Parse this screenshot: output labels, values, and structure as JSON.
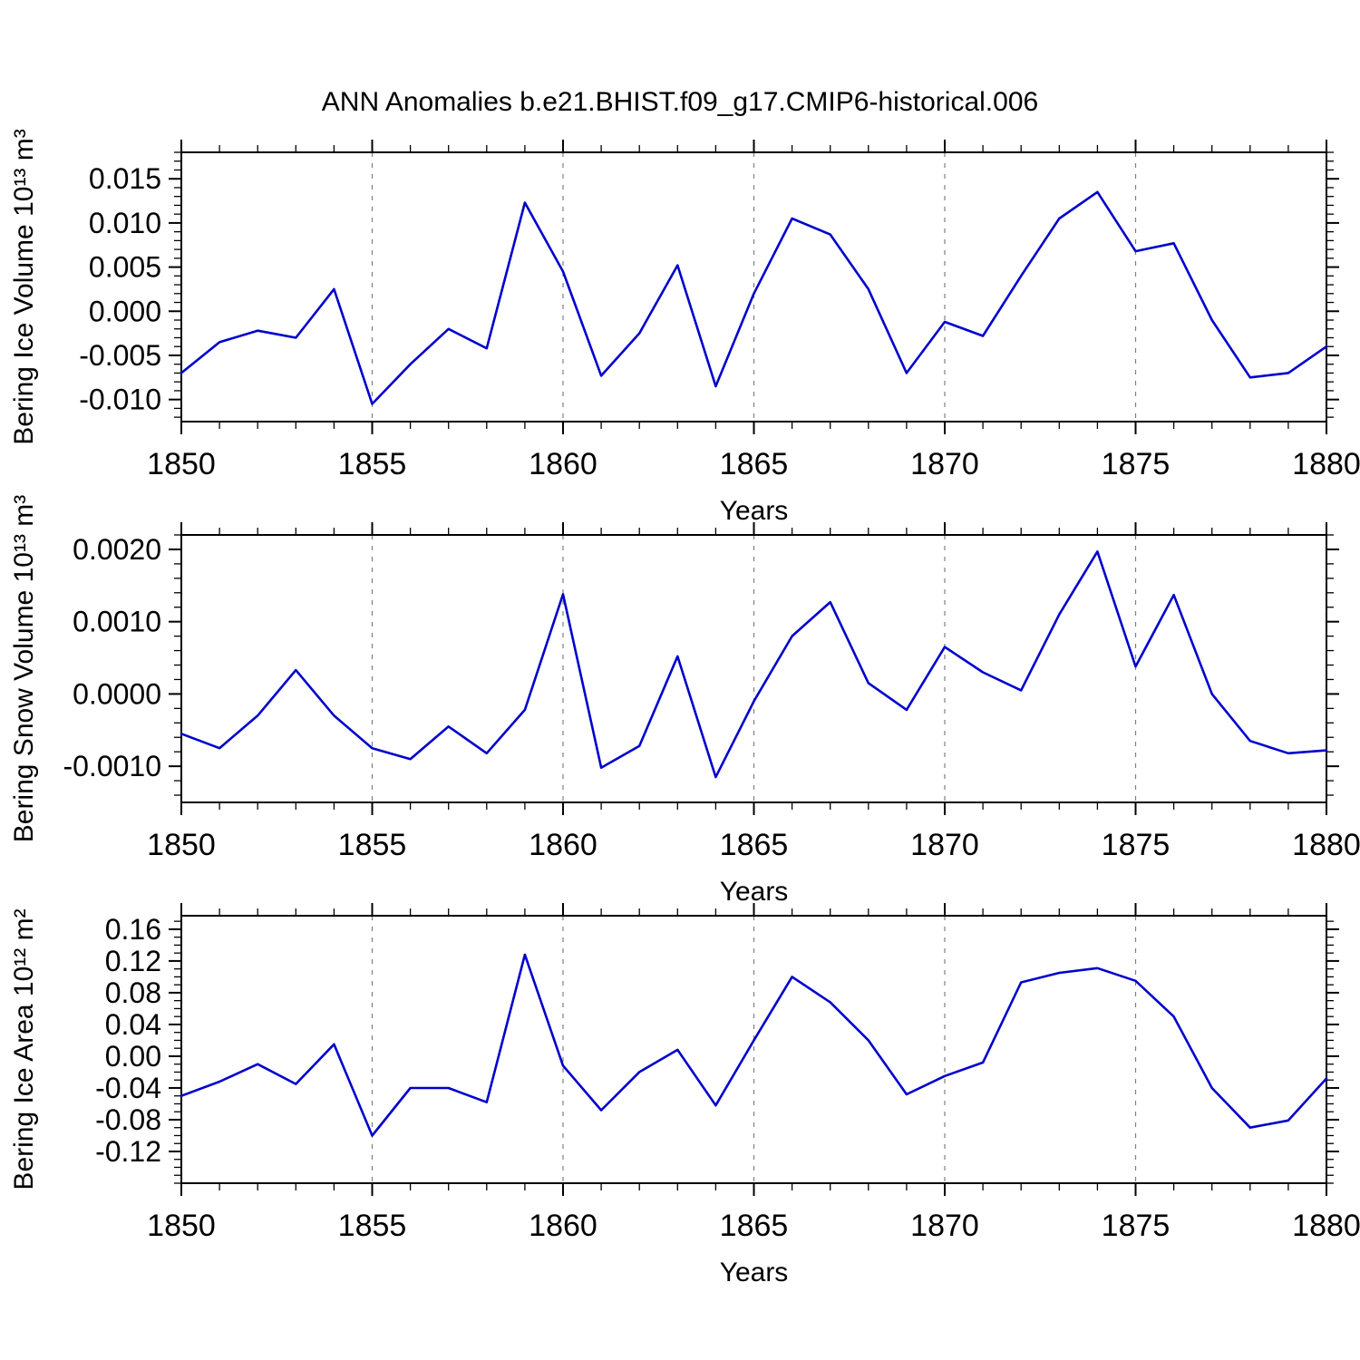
{
  "title": "ANN Anomalies b.e21.BHIST.f09_g17.CMIP6-historical.006",
  "accent_color": "#0000cd",
  "chart_data": [
    {
      "type": "line",
      "name": "ice-volume",
      "ylabel": "Bering Ice Volume 10¹³ m³",
      "xlabel": "Years",
      "x": [
        1850,
        1851,
        1852,
        1853,
        1854,
        1855,
        1856,
        1857,
        1858,
        1859,
        1860,
        1861,
        1862,
        1863,
        1864,
        1865,
        1866,
        1867,
        1868,
        1869,
        1870,
        1871,
        1872,
        1873,
        1874,
        1875,
        1876,
        1877,
        1878,
        1879,
        1880
      ],
      "values": [
        -0.007,
        -0.0035,
        -0.0022,
        -0.003,
        0.0025,
        -0.0105,
        -0.006,
        -0.002,
        -0.0042,
        0.0123,
        0.0045,
        -0.0073,
        -0.0025,
        0.0052,
        -0.0085,
        0.002,
        0.0105,
        0.0087,
        0.0025,
        -0.007,
        -0.0012,
        -0.0028,
        0.004,
        0.0105,
        0.0135,
        0.0068,
        0.0077,
        -0.001,
        -0.0075,
        -0.007,
        -0.004
      ],
      "xlim": [
        1850,
        1880
      ],
      "ylim": [
        -0.0125,
        0.018
      ],
      "xticks": [
        1850,
        1855,
        1860,
        1865,
        1870,
        1875,
        1880
      ],
      "xtick_labels": [
        "1850",
        "1855",
        "1860",
        "1865",
        "1870",
        "1875",
        "1880"
      ],
      "ytick_values": [
        -0.01,
        -0.005,
        0.0,
        0.005,
        0.01,
        0.015
      ],
      "ytick_labels": [
        "-0.010",
        "-0.005",
        "0.000",
        "0.005",
        "0.010",
        "0.015"
      ],
      "grid_x": [
        1855,
        1860,
        1865,
        1870,
        1875
      ],
      "line_color": "#0000cd",
      "grid": "dashed-vertical",
      "legend": "none"
    },
    {
      "type": "line",
      "name": "snow-volume",
      "ylabel": "Bering Snow Volume 10¹³ m³",
      "xlabel": "Years",
      "x": [
        1850,
        1851,
        1852,
        1853,
        1854,
        1855,
        1856,
        1857,
        1858,
        1859,
        1860,
        1861,
        1862,
        1863,
        1864,
        1865,
        1866,
        1867,
        1868,
        1869,
        1870,
        1871,
        1872,
        1873,
        1874,
        1875,
        1876,
        1877,
        1878,
        1879,
        1880
      ],
      "values": [
        -0.00055,
        -0.00075,
        -0.0003,
        0.00033,
        -0.0003,
        -0.00075,
        -0.0009,
        -0.00045,
        -0.00082,
        -0.00022,
        0.00138,
        -0.00102,
        -0.00072,
        0.00052,
        -0.00115,
        -0.0001,
        0.0008,
        0.00127,
        0.00015,
        -0.00022,
        0.00065,
        0.0003,
        5e-05,
        0.0011,
        0.00197,
        0.00038,
        0.00137,
        0.0,
        -0.00065,
        -0.00082,
        -0.00078
      ],
      "xlim": [
        1850,
        1880
      ],
      "ylim": [
        -0.0015,
        0.0022
      ],
      "xticks": [
        1850,
        1855,
        1860,
        1865,
        1870,
        1875,
        1880
      ],
      "xtick_labels": [
        "1850",
        "1855",
        "1860",
        "1865",
        "1870",
        "1875",
        "1880"
      ],
      "ytick_values": [
        -0.001,
        0.0,
        0.001,
        0.002
      ],
      "ytick_labels": [
        "-0.0010",
        "0.0000",
        "0.0010",
        "0.0020"
      ],
      "grid_x": [
        1855,
        1860,
        1865,
        1870,
        1875
      ],
      "line_color": "#0000cd",
      "grid": "dashed-vertical",
      "legend": "none"
    },
    {
      "type": "line",
      "name": "ice-area",
      "ylabel": "Bering Ice Area 10¹² m²",
      "xlabel": "Years",
      "x": [
        1850,
        1851,
        1852,
        1853,
        1854,
        1855,
        1856,
        1857,
        1858,
        1859,
        1860,
        1861,
        1862,
        1863,
        1864,
        1865,
        1866,
        1867,
        1868,
        1869,
        1870,
        1871,
        1872,
        1873,
        1874,
        1875,
        1876,
        1877,
        1878,
        1879,
        1880
      ],
      "values": [
        -0.05,
        -0.032,
        -0.01,
        -0.035,
        0.015,
        -0.1,
        -0.04,
        -0.04,
        -0.058,
        0.128,
        -0.012,
        -0.068,
        -0.02,
        0.008,
        -0.062,
        0.02,
        0.1,
        0.068,
        0.02,
        -0.048,
        -0.025,
        -0.008,
        0.093,
        0.105,
        0.111,
        0.095,
        0.05,
        -0.04,
        -0.09,
        -0.081,
        -0.028
      ],
      "xlim": [
        1850,
        1880
      ],
      "ylim": [
        -0.16,
        0.177
      ],
      "xticks": [
        1850,
        1855,
        1860,
        1865,
        1870,
        1875,
        1880
      ],
      "xtick_labels": [
        "1850",
        "1855",
        "1860",
        "1865",
        "1870",
        "1875",
        "1880"
      ],
      "ytick_values": [
        -0.12,
        -0.08,
        -0.04,
        0.0,
        0.04,
        0.08,
        0.12,
        0.16
      ],
      "ytick_labels": [
        "-0.12",
        "-0.08",
        "-0.04",
        "0.00",
        "0.04",
        "0.08",
        "0.12",
        "0.16"
      ],
      "grid_x": [
        1855,
        1860,
        1865,
        1870,
        1875
      ],
      "line_color": "#0000cd",
      "grid": "dashed-vertical",
      "legend": "none"
    }
  ]
}
